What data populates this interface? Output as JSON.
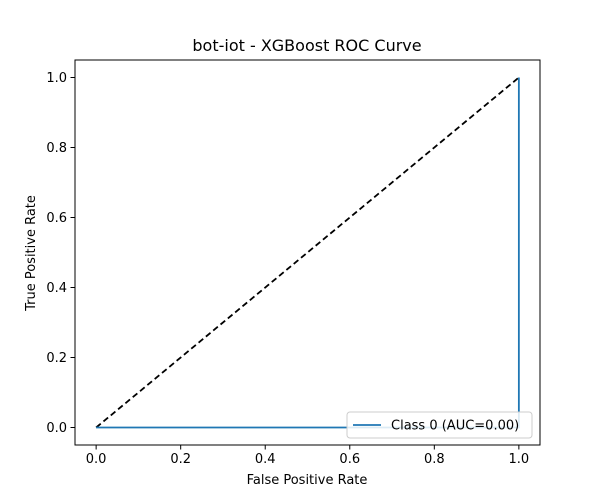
{
  "chart_data": {
    "type": "line",
    "title": "bot-iot - XGBoost ROC Curve",
    "xlabel": "False Positive Rate",
    "ylabel": "True Positive Rate",
    "xlim": [
      -0.05,
      1.05
    ],
    "ylim": [
      -0.05,
      1.05
    ],
    "xticks": [
      "0.0",
      "0.2",
      "0.4",
      "0.6",
      "0.8",
      "1.0"
    ],
    "yticks": [
      "0.0",
      "0.2",
      "0.4",
      "0.6",
      "0.8",
      "1.0"
    ],
    "grid": false,
    "legend_position": "lower right",
    "series": [
      {
        "name": "Class 0 (AUC=0.00)",
        "color": "#1f77b4",
        "style": "solid",
        "x": [
          0.0,
          1.0,
          1.0
        ],
        "y": [
          0.0,
          0.0,
          1.0
        ]
      }
    ],
    "reference_line": {
      "color": "#000000",
      "style": "dashed",
      "x": [
        0.0,
        1.0
      ],
      "y": [
        0.0,
        1.0
      ]
    }
  }
}
